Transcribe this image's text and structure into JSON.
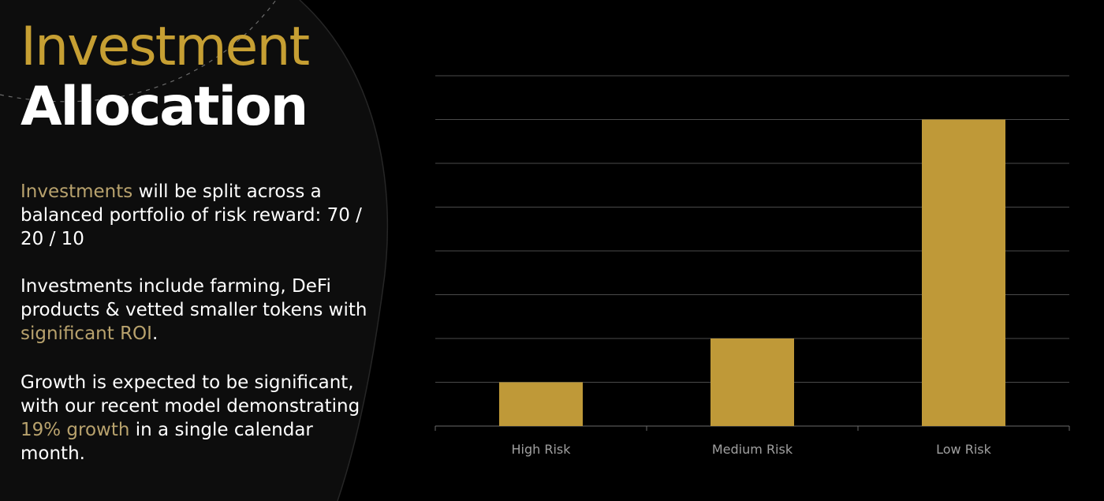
{
  "slide": {
    "title_accent": "Investment",
    "title_main": "Allocation",
    "para1": {
      "highlight": "Investments",
      "rest": " will be split across a balanced portfolio of risk reward: 70 / 20 / 10"
    },
    "para2": {
      "before": "Investments include farming, DeFi products & vetted smaller tokens with ",
      "highlight": "significant ROI",
      "after": "."
    },
    "para3": {
      "before": "Growth is expected to be significant, with our recent model demonstrating ",
      "highlight": "19% growth",
      "after": " in a single calendar month."
    }
  },
  "colors": {
    "background": "#000000",
    "accent_gold": "#c69f33",
    "highlight_text": "#b8a26d",
    "bar_fill": "#bf9938",
    "grid": "#4a4a4a",
    "tick_text": "#a0a0a0"
  },
  "chart_data": {
    "type": "bar",
    "categories": [
      "High Risk",
      "Medium Risk",
      "Low Risk"
    ],
    "values": [
      10,
      20,
      70
    ],
    "title": "",
    "xlabel": "",
    "ylabel": "",
    "ylim": [
      0,
      80
    ],
    "grid": true,
    "legend": "none"
  }
}
